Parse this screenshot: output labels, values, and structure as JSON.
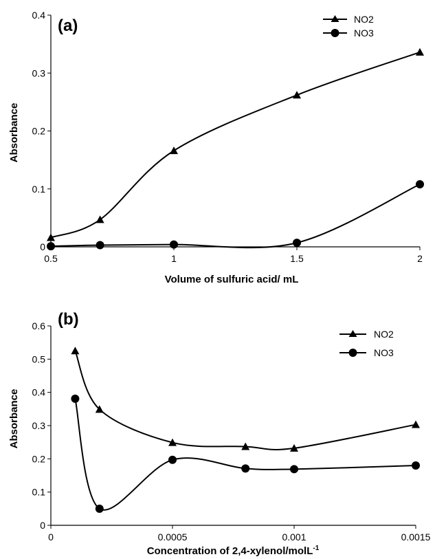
{
  "chart_data": [
    {
      "type": "line",
      "panel_label": "(a)",
      "xlabel": "Volume of sulfuric acid/ mL",
      "ylabel": "Absorbance",
      "xlim": [
        0.5,
        2
      ],
      "ylim": [
        0,
        0.4
      ],
      "x_ticks": [
        0.5,
        1,
        1.5,
        2
      ],
      "x_tick_labels": [
        "0.5",
        "1",
        "1.5",
        "2"
      ],
      "y_ticks": [
        0,
        0.1,
        0.2,
        0.3,
        0.4
      ],
      "y_tick_labels": [
        "0",
        "0.1",
        "0.2",
        "0.3",
        "0.4"
      ],
      "grid": false,
      "legend_position": "top-right",
      "series": [
        {
          "name": "NO2",
          "marker": "triangle",
          "color": "#000000",
          "x": [
            0.5,
            0.7,
            1,
            1.5,
            2
          ],
          "y": [
            0.016,
            0.047,
            0.166,
            0.262,
            0.336
          ]
        },
        {
          "name": "NO3",
          "marker": "circle",
          "color": "#000000",
          "x": [
            0.5,
            0.7,
            1,
            1.5,
            2
          ],
          "y": [
            0.001,
            0.003,
            0.004,
            0.007,
            0.108
          ]
        }
      ]
    },
    {
      "type": "line",
      "panel_label": "(b)",
      "xlabel": "Concentration of 2,4-xylenol/molL",
      "xlabel_sup": "-1",
      "ylabel": "Absorbance",
      "xlim": [
        0,
        0.0015
      ],
      "ylim": [
        0,
        0.6
      ],
      "x_ticks": [
        0,
        0.0005,
        0.001,
        0.0015
      ],
      "x_tick_labels": [
        "0",
        "0.0005",
        "0.001",
        "0.0015"
      ],
      "y_ticks": [
        0,
        0.1,
        0.2,
        0.3,
        0.4,
        0.5,
        0.6
      ],
      "y_tick_labels": [
        "0",
        "0.1",
        "0.2",
        "0.3",
        "0.4",
        "0.5",
        "0.6"
      ],
      "grid": false,
      "legend_position": "top-right",
      "series": [
        {
          "name": "NO2",
          "marker": "triangle",
          "color": "#000000",
          "x": [
            0.0001,
            0.0002,
            0.0005,
            0.0008,
            0.001,
            0.0015
          ],
          "y": [
            0.525,
            0.349,
            0.249,
            0.237,
            0.232,
            0.303
          ]
        },
        {
          "name": "NO3",
          "marker": "circle",
          "color": "#000000",
          "x": [
            0.0001,
            0.0002,
            0.0005,
            0.0008,
            0.001,
            0.0015
          ],
          "y": [
            0.381,
            0.05,
            0.197,
            0.171,
            0.169,
            0.18
          ]
        }
      ]
    }
  ]
}
